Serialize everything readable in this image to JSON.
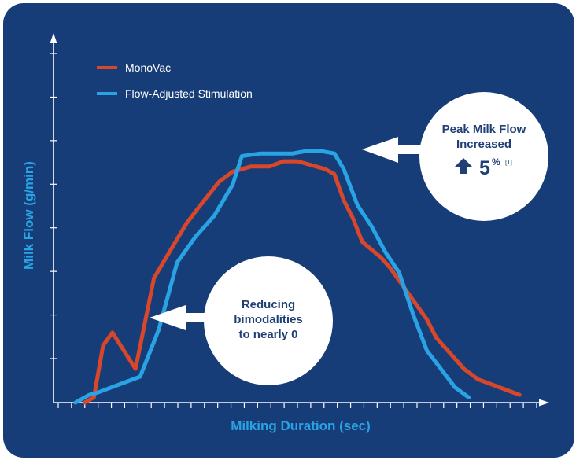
{
  "colors": {
    "background": "#163d78",
    "monovac": "#d9472b",
    "flow_adjusted": "#29a3e3",
    "axis": "#ffffff",
    "callout_fill": "#ffffff",
    "callout_text": "#1f3f75"
  },
  "callouts": {
    "peak": {
      "line1": "Peak Milk Flow",
      "line2": "Increased",
      "value": "5",
      "unit": "%",
      "reference": "[1]",
      "icon": "arrow-up-icon"
    },
    "bimodal": {
      "line1": "Reducing",
      "line2": "bimodalities",
      "line3": "to nearly 0"
    }
  },
  "chart_data": {
    "type": "line",
    "title": "",
    "xlabel": "Milking Duration (sec)",
    "ylabel": "Milk Flow (g/min)",
    "x_ticks": 37,
    "y_ticks": 8,
    "xlim": [
      0,
      100
    ],
    "ylim": [
      0,
      100
    ],
    "grid": false,
    "legend_position": "top-left",
    "series": [
      {
        "name": "MonoVac",
        "color": "#d9472b",
        "x": [
          4,
          6,
          8,
          10,
          15,
          19,
          23,
          26,
          29,
          33,
          36,
          40,
          44,
          47,
          50,
          52,
          54,
          56,
          58,
          60,
          62,
          64,
          66,
          68,
          70,
          74,
          78,
          80,
          83,
          86,
          89,
          92,
          95,
          98
        ],
        "y": [
          0,
          2,
          22,
          27,
          13,
          48,
          60,
          69,
          76,
          85,
          89,
          91,
          91,
          93,
          93,
          92,
          91,
          90,
          88,
          78,
          71,
          62,
          59,
          56,
          52,
          42,
          32,
          25,
          19,
          13,
          9,
          7,
          5,
          3
        ]
      },
      {
        "name": "Flow-Adjusted Stimulation",
        "color": "#29a3e3",
        "x": [
          2,
          5,
          7,
          10,
          13,
          16,
          20,
          24,
          28,
          32,
          36,
          38,
          42,
          46,
          49,
          52,
          55,
          58,
          60,
          63,
          66,
          69,
          72,
          75,
          78,
          81,
          84,
          87
        ],
        "y": [
          0,
          3,
          4,
          6,
          8,
          10,
          28,
          54,
          64,
          72,
          84,
          95,
          96,
          96,
          96,
          97,
          97,
          96,
          90,
          76,
          68,
          58,
          50,
          34,
          20,
          13,
          6,
          2
        ]
      }
    ]
  }
}
